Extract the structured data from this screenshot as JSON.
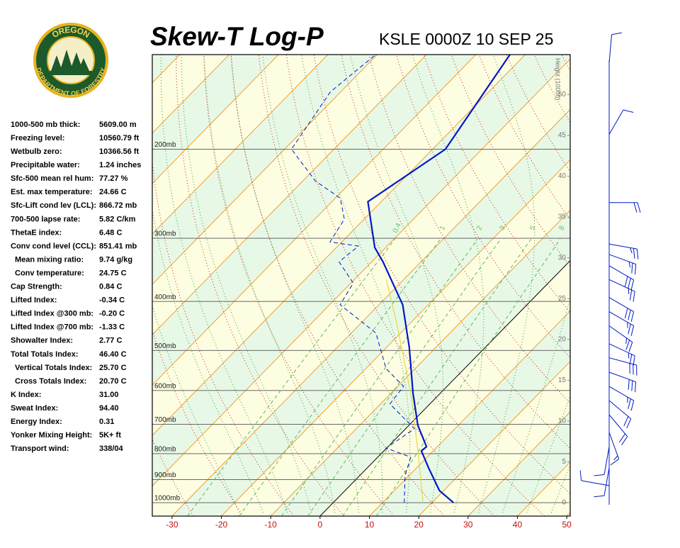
{
  "logo": {
    "top": "OREGON",
    "bottom": "DEPARTMENT OF FORESTRY"
  },
  "stats": [
    {
      "label": "1000-500 mb thick:",
      "value": "5609.00 m"
    },
    {
      "label": "Freezing level:",
      "value": "10560.79 ft"
    },
    {
      "label": "Wetbulb zero:",
      "value": "10366.56 ft"
    },
    {
      "label": "Precipitable water:",
      "value": "1.24 inches"
    },
    {
      "label": "Sfc-500 mean rel hum:",
      "value": "77.27 %"
    },
    {
      "label": "Est. max temperature:",
      "value": "24.66 C"
    },
    {
      "label": "Sfc-Lift cond lev (LCL):",
      "value": "866.72 mb"
    },
    {
      "label": "700-500 lapse rate:",
      "value": "5.82 C/km"
    },
    {
      "label": "ThetaE index:",
      "value": "6.48 C"
    },
    {
      "label": "Conv cond level (CCL):",
      "value": "851.41 mb"
    },
    {
      "label": "Mean mixing ratio:",
      "value": "9.74 g/kg",
      "indent": true
    },
    {
      "label": "Conv temperature:",
      "value": "24.75 C",
      "indent": true
    },
    {
      "label": "Cap Strength:",
      "value": "0.84 C"
    },
    {
      "label": "Lifted Index:",
      "value": "-0.34 C"
    },
    {
      "label": "Lifted Index @300 mb:",
      "value": "-0.20 C"
    },
    {
      "label": "Lifted Index @700 mb:",
      "value": "-1.33 C"
    },
    {
      "label": "Showalter Index:",
      "value": "2.77 C"
    },
    {
      "label": "Total Totals Index:",
      "value": "46.40 C"
    },
    {
      "label": "Vertical Totals Index:",
      "value": "25.70 C",
      "indent": true
    },
    {
      "label": "Cross Totals Index:",
      "value": "20.70 C",
      "indent": true
    },
    {
      "label": "K Index:",
      "value": "31.00"
    },
    {
      "label": "Sweat Index:",
      "value": "94.40"
    },
    {
      "label": "Energy Index:",
      "value": "0.31"
    },
    {
      "label": "Yonker Mixing Height:",
      "value": "5K+ ft"
    },
    {
      "label": "Transport wind:",
      "value": "338/04"
    }
  ],
  "chart_data": {
    "type": "skewt",
    "title": "Skew-T Log-P",
    "subtitle": "KSLE 0000Z 10 SEP 25",
    "xlim": [
      -34,
      50.7
    ],
    "xticks": [
      -30,
      -20,
      -10,
      0,
      10,
      20,
      30,
      40,
      50
    ],
    "ylim": [
      1063,
      130
    ],
    "log_y": true,
    "yticks": [
      {
        "value": 1000,
        "label": "1000mb"
      },
      {
        "value": 900,
        "label": "900mb"
      },
      {
        "value": 800,
        "label": "800mb"
      },
      {
        "value": 700,
        "label": "700mb"
      },
      {
        "value": 600,
        "label": "600mb"
      },
      {
        "value": 500,
        "label": "500mb"
      },
      {
        "value": 400,
        "label": "400mb"
      },
      {
        "value": 300,
        "label": "300mb"
      },
      {
        "value": 200,
        "label": "200mb"
      }
    ],
    "y2label": "Height (1000ft)",
    "y2lim": [
      -1.65,
      54.9
    ],
    "y2ticks": [
      0,
      5,
      10,
      15,
      20,
      25,
      30,
      35,
      40,
      45,
      50
    ],
    "mixing_ratios": [
      0.4,
      1,
      2,
      3,
      5,
      8
    ],
    "series": [
      {
        "color": "#0018c8",
        "pressure": [
          1000,
          946,
          853,
          790,
          775,
          703,
          608,
          493,
          406,
          334,
          313,
          254,
          200,
          130
        ],
        "values": [
          24.4,
          19.1,
          12.4,
          7.6,
          7.8,
          1.8,
          -5.5,
          -15.4,
          -25.2,
          -37.7,
          -42.2,
          -52.7,
          -47.4,
          -53.1
        ]
      },
      {
        "color": "#0018c8",
        "dashed": true,
        "pressure": [
          1000,
          882,
          813,
          780,
          714,
          638,
          589,
          543,
          462,
          406,
          368,
          334,
          311,
          305,
          275,
          250,
          231,
          200,
          154,
          130
        ],
        "values": [
          14.4,
          9.1,
          6.7,
          -0.1,
          1.8,
          -8.1,
          -8.8,
          -15.9,
          -25.0,
          -37.9,
          -39.5,
          -46.6,
          -45.8,
          -52.4,
          -54.0,
          -59.0,
          -67.5,
          -78.6,
          -82.1,
          -80.3
        ]
      },
      {
        "color": "#e6d84a",
        "pressure": [
          1000,
          800,
          617,
          447,
          362
        ],
        "values": [
          18.2,
          7.5,
          -5.2,
          -22.1,
          -33.5
        ]
      }
    ],
    "winds": {
      "pressure": [
        135,
        187,
        255,
        308,
        323,
        340,
        362,
        393,
        419,
        447,
        485,
        517,
        552,
        589,
        628,
        670,
        726,
        775,
        853,
        925
      ],
      "direction": [
        5,
        30,
        90,
        100,
        110,
        120,
        115,
        120,
        120,
        125,
        115,
        105,
        110,
        120,
        130,
        140,
        160,
        190,
        190,
        280
      ],
      "speed": [
        10,
        10,
        20,
        25,
        25,
        30,
        25,
        30,
        25,
        25,
        25,
        30,
        30,
        25,
        20,
        20,
        15,
        10,
        10,
        10
      ]
    }
  }
}
